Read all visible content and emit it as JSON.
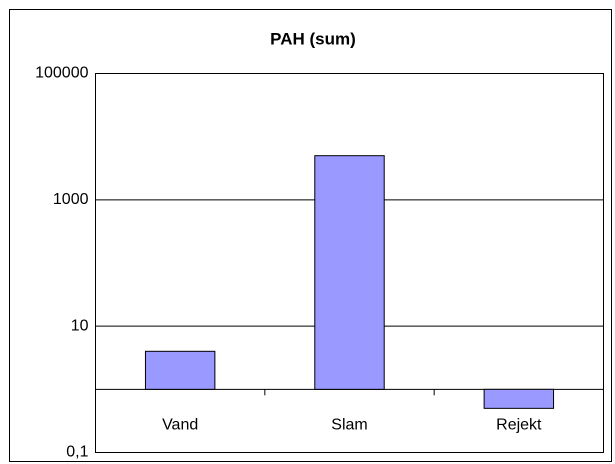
{
  "chart_data": {
    "type": "bar",
    "title": "PAH (sum)",
    "categories": [
      "Vand",
      "Slam",
      "Rejekt"
    ],
    "values": [
      4,
      5000,
      0.5
    ],
    "color": "#9999ff",
    "ylim": [
      0.1,
      100000
    ],
    "yticks": [
      {
        "value": 0.1,
        "label": "0,1"
      },
      10,
      1000,
      100000
    ],
    "yscale": "log",
    "grid": true
  }
}
